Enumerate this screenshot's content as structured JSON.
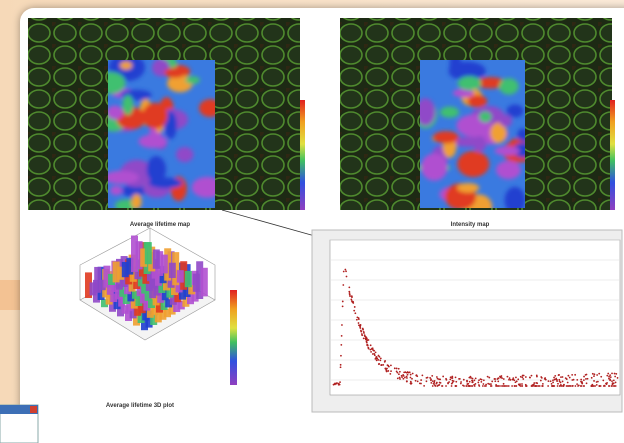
{
  "panels": {
    "lifetime_map": {
      "caption": "Average lifetime map"
    },
    "intensity_map": {
      "caption": "Intensity map"
    },
    "plot_3d": {
      "caption": "Average lifetime 3D plot"
    }
  }
}
